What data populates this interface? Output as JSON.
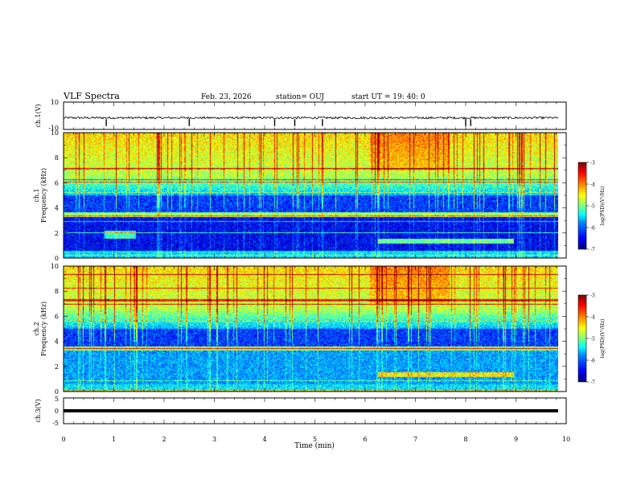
{
  "header": {
    "title": "VLF Spectra",
    "date": "Feb. 23, 2026",
    "station": "station= OUJ",
    "start": "start  UT =   19: 40: 0"
  },
  "chart_data": [
    {
      "type": "line",
      "name": "ch1-waveform",
      "ylabel": "ch.1(V)",
      "ylim": [
        -10,
        10
      ],
      "yticks": [
        "10",
        "-10"
      ],
      "xlim": [
        0,
        10
      ],
      "baseline": -1.5,
      "spike_times": [
        0.85,
        2.5,
        4.2,
        4.6,
        5.15,
        8.0,
        8.1
      ],
      "xlabel": ""
    },
    {
      "type": "heatmap",
      "name": "ch1-spectrogram",
      "ylabel": "ch.1\nFrequency  (kHz)",
      "ylabel_lines": [
        "ch.1",
        "Frequency  (kHz)"
      ],
      "yticks": [
        "0",
        "2",
        "4",
        "6",
        "8",
        "10"
      ],
      "ylim": [
        0,
        10
      ],
      "xlim": [
        0,
        10
      ],
      "colorbar": {
        "label": "log(PSD)(V²/Hz)",
        "ticks": [
          "-3",
          "-4",
          "-5",
          "-6",
          "-7"
        ],
        "range": [
          -7,
          -3
        ]
      }
    },
    {
      "type": "heatmap",
      "name": "ch2-spectrogram",
      "ylabel": "ch.2\nFrequency  (kHz)",
      "ylabel_lines": [
        "ch.2",
        "Frequency  (kHz)"
      ],
      "yticks": [
        "0",
        "2",
        "4",
        "6",
        "8",
        "10"
      ],
      "ylim": [
        0,
        10
      ],
      "xlim": [
        0,
        10
      ],
      "colorbar": {
        "label": "log(PSD)(V²/Hz)",
        "ticks": [
          "-3",
          "-4",
          "-5",
          "-6",
          "-7"
        ],
        "range": [
          -7,
          -3
        ]
      }
    },
    {
      "type": "line",
      "name": "ch3-waveform",
      "ylabel": "ch.3(V)",
      "ylim": [
        -5,
        5
      ],
      "yticks": [
        "5",
        "0",
        "-5"
      ],
      "xlim": [
        0,
        10
      ],
      "baseline": 0,
      "xlabel": "Time  (min)",
      "xticks": [
        "0",
        "1",
        "2",
        "3",
        "4",
        "5",
        "6",
        "7",
        "8",
        "9",
        "10"
      ]
    }
  ],
  "colors": {
    "jet": [
      "#00007f",
      "#0000ff",
      "#007fff",
      "#00ffff",
      "#7fff7f",
      "#ffff00",
      "#ff7f00",
      "#ff0000",
      "#7f0000"
    ]
  }
}
